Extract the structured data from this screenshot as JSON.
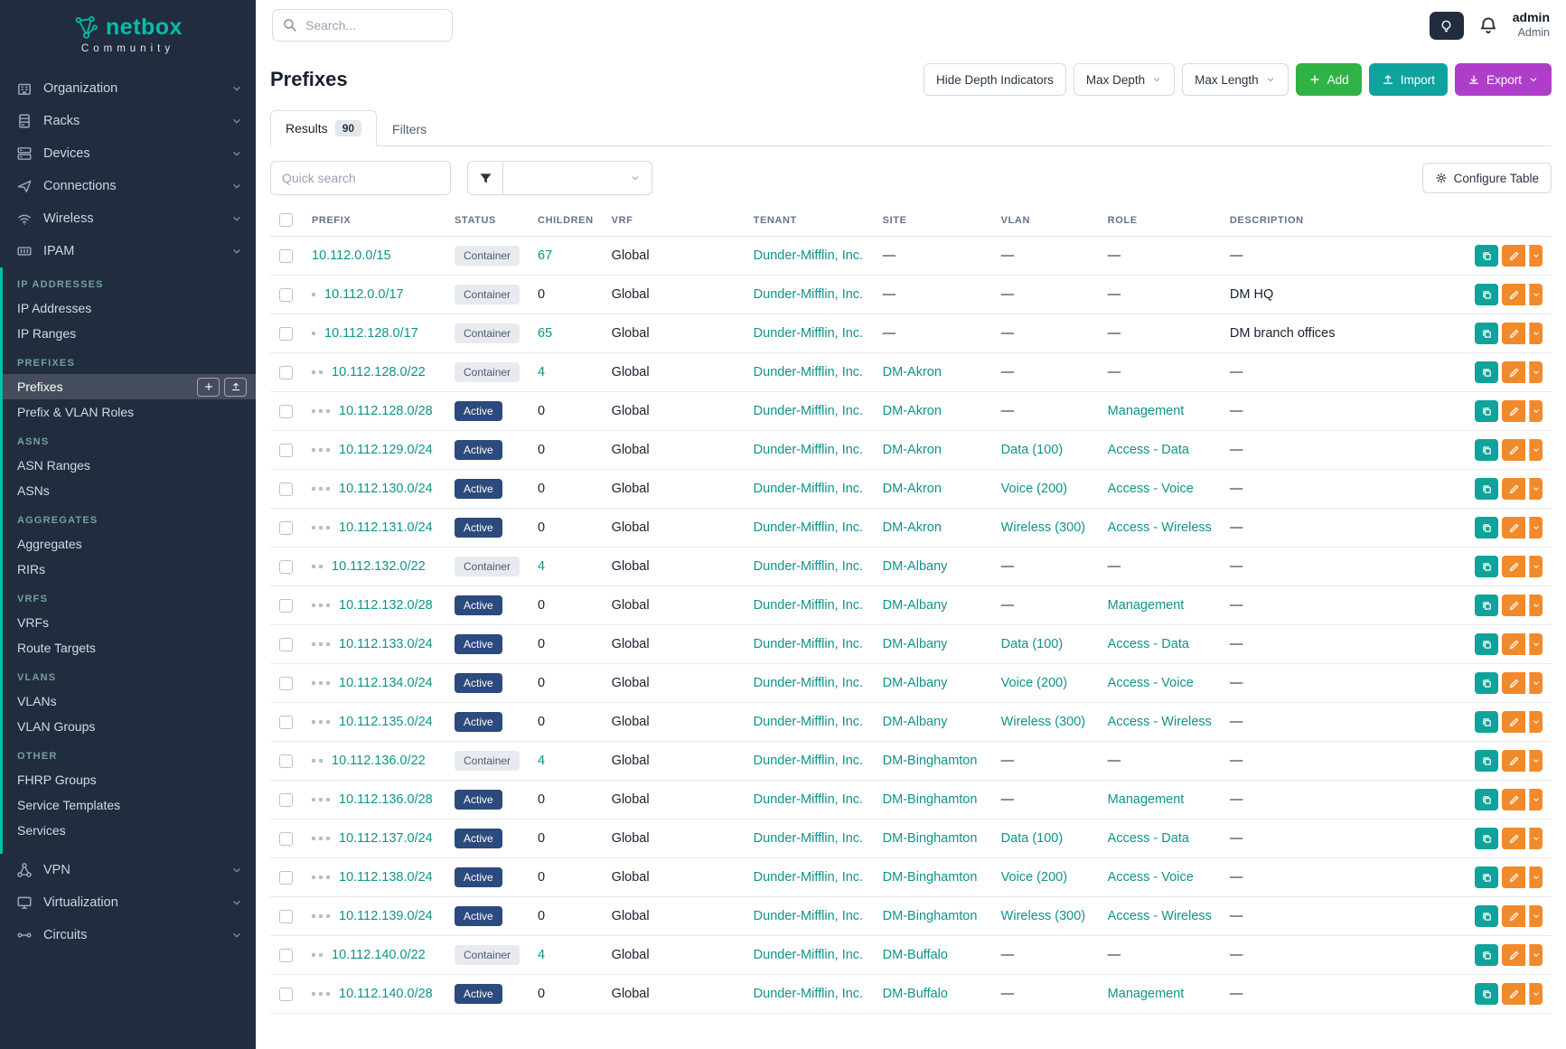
{
  "colors": {
    "accent_teal": "#0e9488",
    "sidebar_bg": "#222c3f",
    "brand_teal": "#00bfa8",
    "active_badge_blue": "#2b4a7e",
    "container_badge_gray": "#e7ebf0",
    "add_green": "#2fb344",
    "import_teal": "#0fa3a0",
    "export_purple": "#ae3ec9",
    "edit_orange": "#f08a2b"
  },
  "brand": {
    "name": "netbox",
    "subtitle": "Community",
    "logo_icon": "netbox-logo-icon"
  },
  "topbar": {
    "search_placeholder": "Search...",
    "theme_toggle_icon": "lightbulb-icon",
    "notifications_icon": "bell-icon",
    "user": {
      "name": "admin",
      "role": "Admin"
    }
  },
  "sidebar": {
    "items_above": [
      {
        "label": "Organization",
        "icon": "organization-icon"
      },
      {
        "label": "Racks",
        "icon": "racks-icon"
      },
      {
        "label": "Devices",
        "icon": "devices-icon"
      },
      {
        "label": "Connections",
        "icon": "connections-icon"
      },
      {
        "label": "Wireless",
        "icon": "wireless-icon"
      },
      {
        "label": "IPAM",
        "icon": "ipam-icon"
      }
    ],
    "ipam_groups": [
      {
        "header": "IP ADDRESSES",
        "items": [
          {
            "label": "IP Addresses"
          },
          {
            "label": "IP Ranges"
          }
        ]
      },
      {
        "header": "PREFIXES",
        "items": [
          {
            "label": "Prefixes",
            "active": true
          },
          {
            "label": "Prefix & VLAN Roles"
          }
        ]
      },
      {
        "header": "ASNS",
        "items": [
          {
            "label": "ASN Ranges"
          },
          {
            "label": "ASNs"
          }
        ]
      },
      {
        "header": "AGGREGATES",
        "items": [
          {
            "label": "Aggregates"
          },
          {
            "label": "RIRs"
          }
        ]
      },
      {
        "header": "VRFS",
        "items": [
          {
            "label": "VRFs"
          },
          {
            "label": "Route Targets"
          }
        ]
      },
      {
        "header": "VLANS",
        "items": [
          {
            "label": "VLANs"
          },
          {
            "label": "VLAN Groups"
          }
        ]
      },
      {
        "header": "OTHER",
        "items": [
          {
            "label": "FHRP Groups"
          },
          {
            "label": "Service Templates"
          },
          {
            "label": "Services"
          }
        ]
      }
    ],
    "items_below": [
      {
        "label": "VPN",
        "icon": "vpn-icon"
      },
      {
        "label": "Virtualization",
        "icon": "virtualization-icon"
      },
      {
        "label": "Circuits",
        "icon": "circuits-icon"
      }
    ],
    "active_item": "Prefixes"
  },
  "page": {
    "title": "Prefixes",
    "toolbar": {
      "hide_depth_label": "Hide Depth Indicators",
      "max_depth_label": "Max Depth",
      "max_length_label": "Max Length",
      "add_label": "Add",
      "add_icon": "plus-icon",
      "import_label": "Import",
      "import_icon": "upload-icon",
      "export_label": "Export",
      "export_icon": "download-icon"
    },
    "tabs": [
      {
        "label": "Results",
        "badge": "90"
      },
      {
        "label": "Filters"
      }
    ],
    "quick_search_placeholder": "Quick search",
    "filter_icon": "funnel-icon",
    "configure_table_label": "Configure Table",
    "configure_table_icon": "gear-icon"
  },
  "table": {
    "columns": [
      "PREFIX",
      "STATUS",
      "CHILDREN",
      "VRF",
      "TENANT",
      "SITE",
      "VLAN",
      "ROLE",
      "DESCRIPTION"
    ],
    "rows": [
      {
        "depth": 0,
        "prefix": "10.112.0.0/15",
        "status": "Container",
        "children": "67",
        "vrf": "Global",
        "tenant": "Dunder-Mifflin, Inc.",
        "site": "—",
        "vlan": "—",
        "role": "—",
        "description": "—"
      },
      {
        "depth": 1,
        "prefix": "10.112.0.0/17",
        "status": "Container",
        "children": "0",
        "vrf": "Global",
        "tenant": "Dunder-Mifflin, Inc.",
        "site": "—",
        "vlan": "—",
        "role": "—",
        "description": "DM HQ"
      },
      {
        "depth": 1,
        "prefix": "10.112.128.0/17",
        "status": "Container",
        "children": "65",
        "vrf": "Global",
        "tenant": "Dunder-Mifflin, Inc.",
        "site": "—",
        "vlan": "—",
        "role": "—",
        "description": "DM branch offices"
      },
      {
        "depth": 2,
        "prefix": "10.112.128.0/22",
        "status": "Container",
        "children": "4",
        "vrf": "Global",
        "tenant": "Dunder-Mifflin, Inc.",
        "site": "DM-Akron",
        "vlan": "—",
        "role": "—",
        "description": "—"
      },
      {
        "depth": 3,
        "prefix": "10.112.128.0/28",
        "status": "Active",
        "children": "0",
        "vrf": "Global",
        "tenant": "Dunder-Mifflin, Inc.",
        "site": "DM-Akron",
        "vlan": "—",
        "role": "Management",
        "description": "—"
      },
      {
        "depth": 3,
        "prefix": "10.112.129.0/24",
        "status": "Active",
        "children": "0",
        "vrf": "Global",
        "tenant": "Dunder-Mifflin, Inc.",
        "site": "DM-Akron",
        "vlan": "Data (100)",
        "role": "Access - Data",
        "description": "—"
      },
      {
        "depth": 3,
        "prefix": "10.112.130.0/24",
        "status": "Active",
        "children": "0",
        "vrf": "Global",
        "tenant": "Dunder-Mifflin, Inc.",
        "site": "DM-Akron",
        "vlan": "Voice (200)",
        "role": "Access - Voice",
        "description": "—"
      },
      {
        "depth": 3,
        "prefix": "10.112.131.0/24",
        "status": "Active",
        "children": "0",
        "vrf": "Global",
        "tenant": "Dunder-Mifflin, Inc.",
        "site": "DM-Akron",
        "vlan": "Wireless (300)",
        "role": "Access - Wireless",
        "description": "—"
      },
      {
        "depth": 2,
        "prefix": "10.112.132.0/22",
        "status": "Container",
        "children": "4",
        "vrf": "Global",
        "tenant": "Dunder-Mifflin, Inc.",
        "site": "DM-Albany",
        "vlan": "—",
        "role": "—",
        "description": "—"
      },
      {
        "depth": 3,
        "prefix": "10.112.132.0/28",
        "status": "Active",
        "children": "0",
        "vrf": "Global",
        "tenant": "Dunder-Mifflin, Inc.",
        "site": "DM-Albany",
        "vlan": "—",
        "role": "Management",
        "description": "—"
      },
      {
        "depth": 3,
        "prefix": "10.112.133.0/24",
        "status": "Active",
        "children": "0",
        "vrf": "Global",
        "tenant": "Dunder-Mifflin, Inc.",
        "site": "DM-Albany",
        "vlan": "Data (100)",
        "role": "Access - Data",
        "description": "—"
      },
      {
        "depth": 3,
        "prefix": "10.112.134.0/24",
        "status": "Active",
        "children": "0",
        "vrf": "Global",
        "tenant": "Dunder-Mifflin, Inc.",
        "site": "DM-Albany",
        "vlan": "Voice (200)",
        "role": "Access - Voice",
        "description": "—"
      },
      {
        "depth": 3,
        "prefix": "10.112.135.0/24",
        "status": "Active",
        "children": "0",
        "vrf": "Global",
        "tenant": "Dunder-Mifflin, Inc.",
        "site": "DM-Albany",
        "vlan": "Wireless (300)",
        "role": "Access - Wireless",
        "description": "—"
      },
      {
        "depth": 2,
        "prefix": "10.112.136.0/22",
        "status": "Container",
        "children": "4",
        "vrf": "Global",
        "tenant": "Dunder-Mifflin, Inc.",
        "site": "DM-Binghamton",
        "vlan": "—",
        "role": "—",
        "description": "—"
      },
      {
        "depth": 3,
        "prefix": "10.112.136.0/28",
        "status": "Active",
        "children": "0",
        "vrf": "Global",
        "tenant": "Dunder-Mifflin, Inc.",
        "site": "DM-Binghamton",
        "vlan": "—",
        "role": "Management",
        "description": "—"
      },
      {
        "depth": 3,
        "prefix": "10.112.137.0/24",
        "status": "Active",
        "children": "0",
        "vrf": "Global",
        "tenant": "Dunder-Mifflin, Inc.",
        "site": "DM-Binghamton",
        "vlan": "Data (100)",
        "role": "Access - Data",
        "description": "—"
      },
      {
        "depth": 3,
        "prefix": "10.112.138.0/24",
        "status": "Active",
        "children": "0",
        "vrf": "Global",
        "tenant": "Dunder-Mifflin, Inc.",
        "site": "DM-Binghamton",
        "vlan": "Voice (200)",
        "role": "Access - Voice",
        "description": "—"
      },
      {
        "depth": 3,
        "prefix": "10.112.139.0/24",
        "status": "Active",
        "children": "0",
        "vrf": "Global",
        "tenant": "Dunder-Mifflin, Inc.",
        "site": "DM-Binghamton",
        "vlan": "Wireless (300)",
        "role": "Access - Wireless",
        "description": "—"
      },
      {
        "depth": 2,
        "prefix": "10.112.140.0/22",
        "status": "Container",
        "children": "4",
        "vrf": "Global",
        "tenant": "Dunder-Mifflin, Inc.",
        "site": "DM-Buffalo",
        "vlan": "—",
        "role": "—",
        "description": "—"
      },
      {
        "depth": 3,
        "prefix": "10.112.140.0/28",
        "status": "Active",
        "children": "0",
        "vrf": "Global",
        "tenant": "Dunder-Mifflin, Inc.",
        "site": "DM-Buffalo",
        "vlan": "—",
        "role": "Management",
        "description": "—"
      }
    ]
  }
}
